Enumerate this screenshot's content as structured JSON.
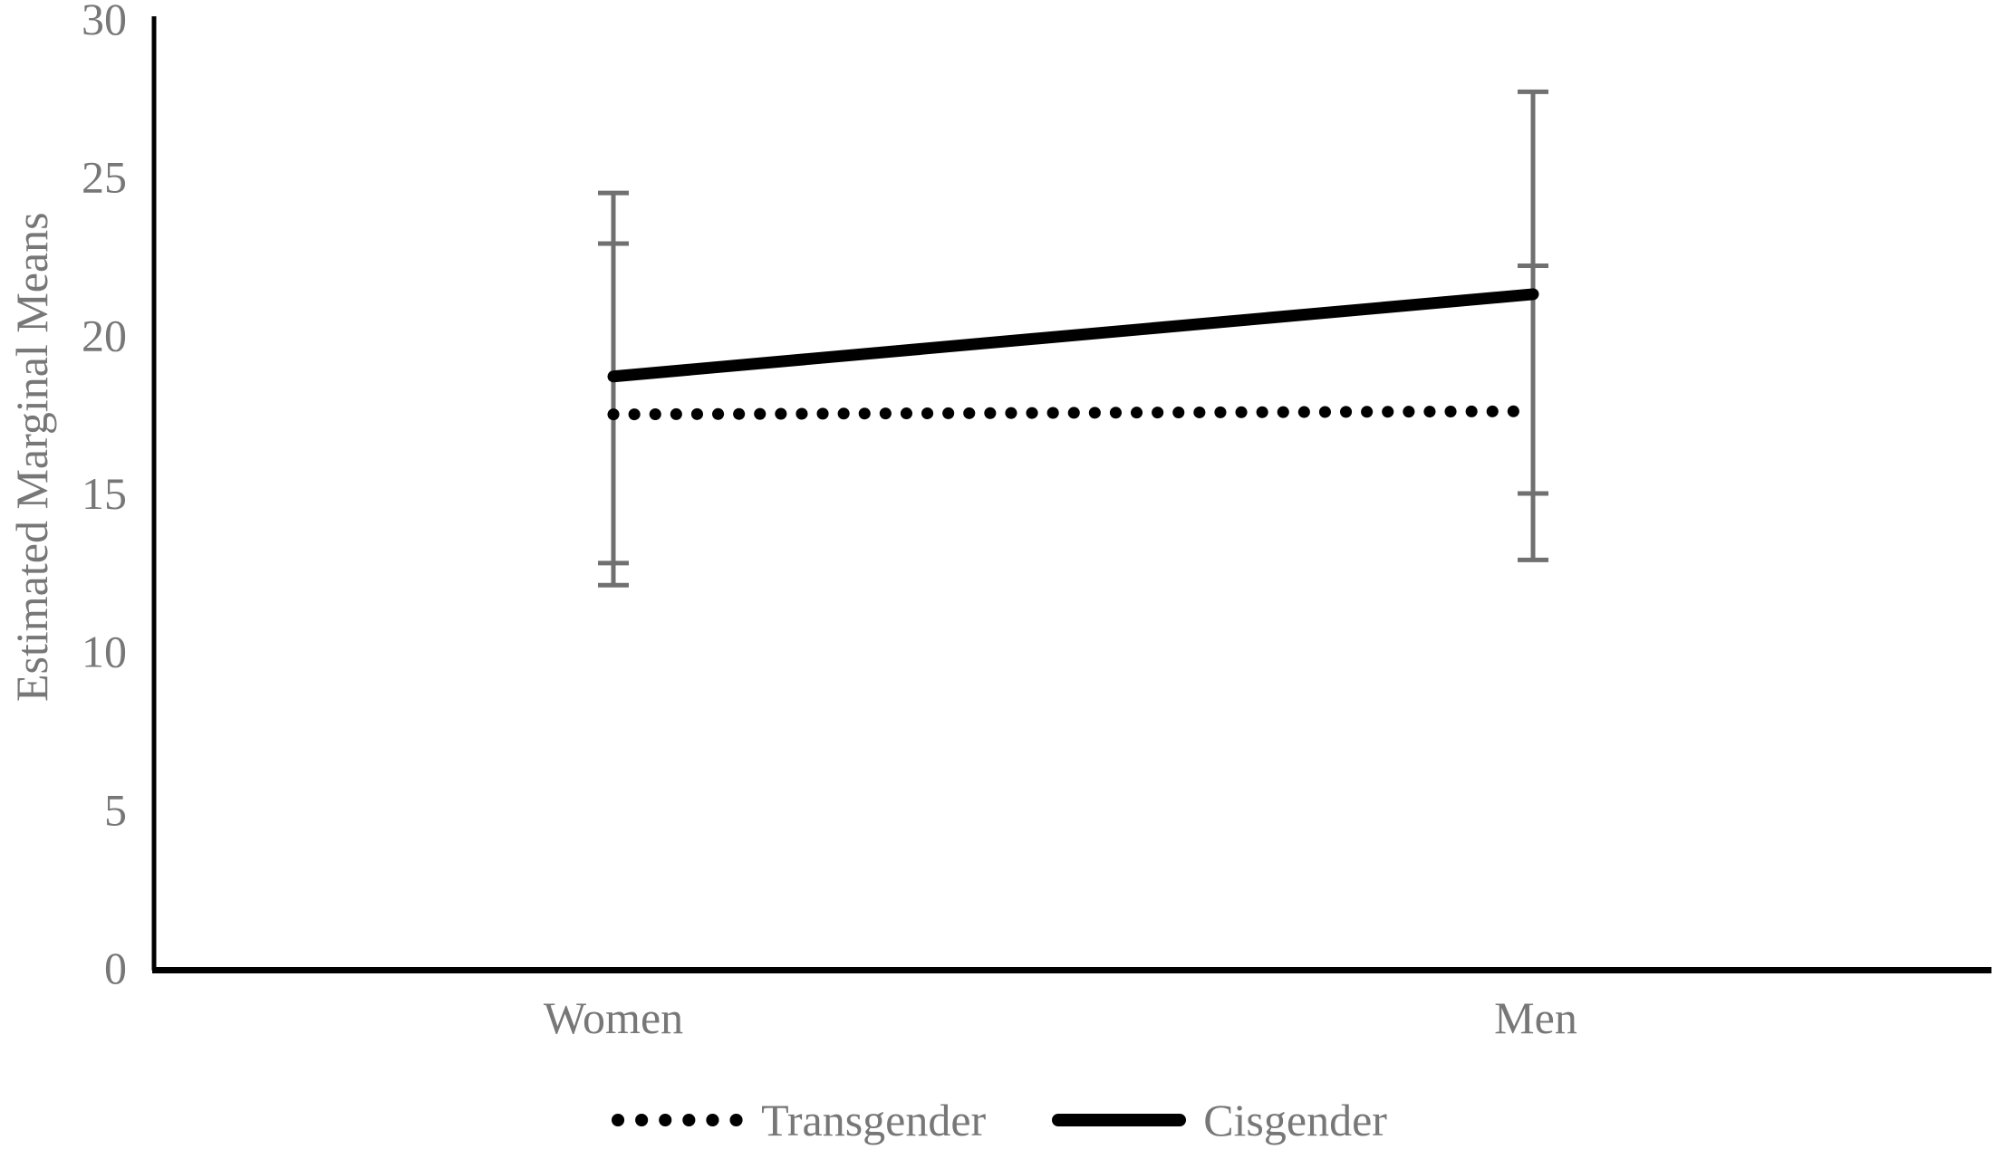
{
  "chart_data": {
    "type": "line",
    "title": "",
    "xlabel": "",
    "ylabel": "Estimated Marginal Means",
    "categories": [
      "Women",
      "Men"
    ],
    "series": [
      {
        "name": "Transgender",
        "style": "dotted",
        "color": "#000000",
        "values": [
          17.5,
          17.6
        ],
        "error_low": [
          12.1,
          12.9
        ],
        "error_high": [
          22.9,
          22.2
        ]
      },
      {
        "name": "Cisgender",
        "style": "solid",
        "color": "#000000",
        "values": [
          18.7,
          21.3
        ],
        "error_low": [
          12.8,
          15.0
        ],
        "error_high": [
          24.5,
          27.7
        ]
      }
    ],
    "ylim": [
      0,
      30
    ],
    "yticks": [
      0,
      5,
      10,
      15,
      20,
      25,
      30
    ],
    "grid": false,
    "legend_position": "bottom-center",
    "colors": {
      "axis": "#000000",
      "tick_text": "#777777",
      "error_bar": "#707070",
      "background": "#ffffff"
    }
  }
}
